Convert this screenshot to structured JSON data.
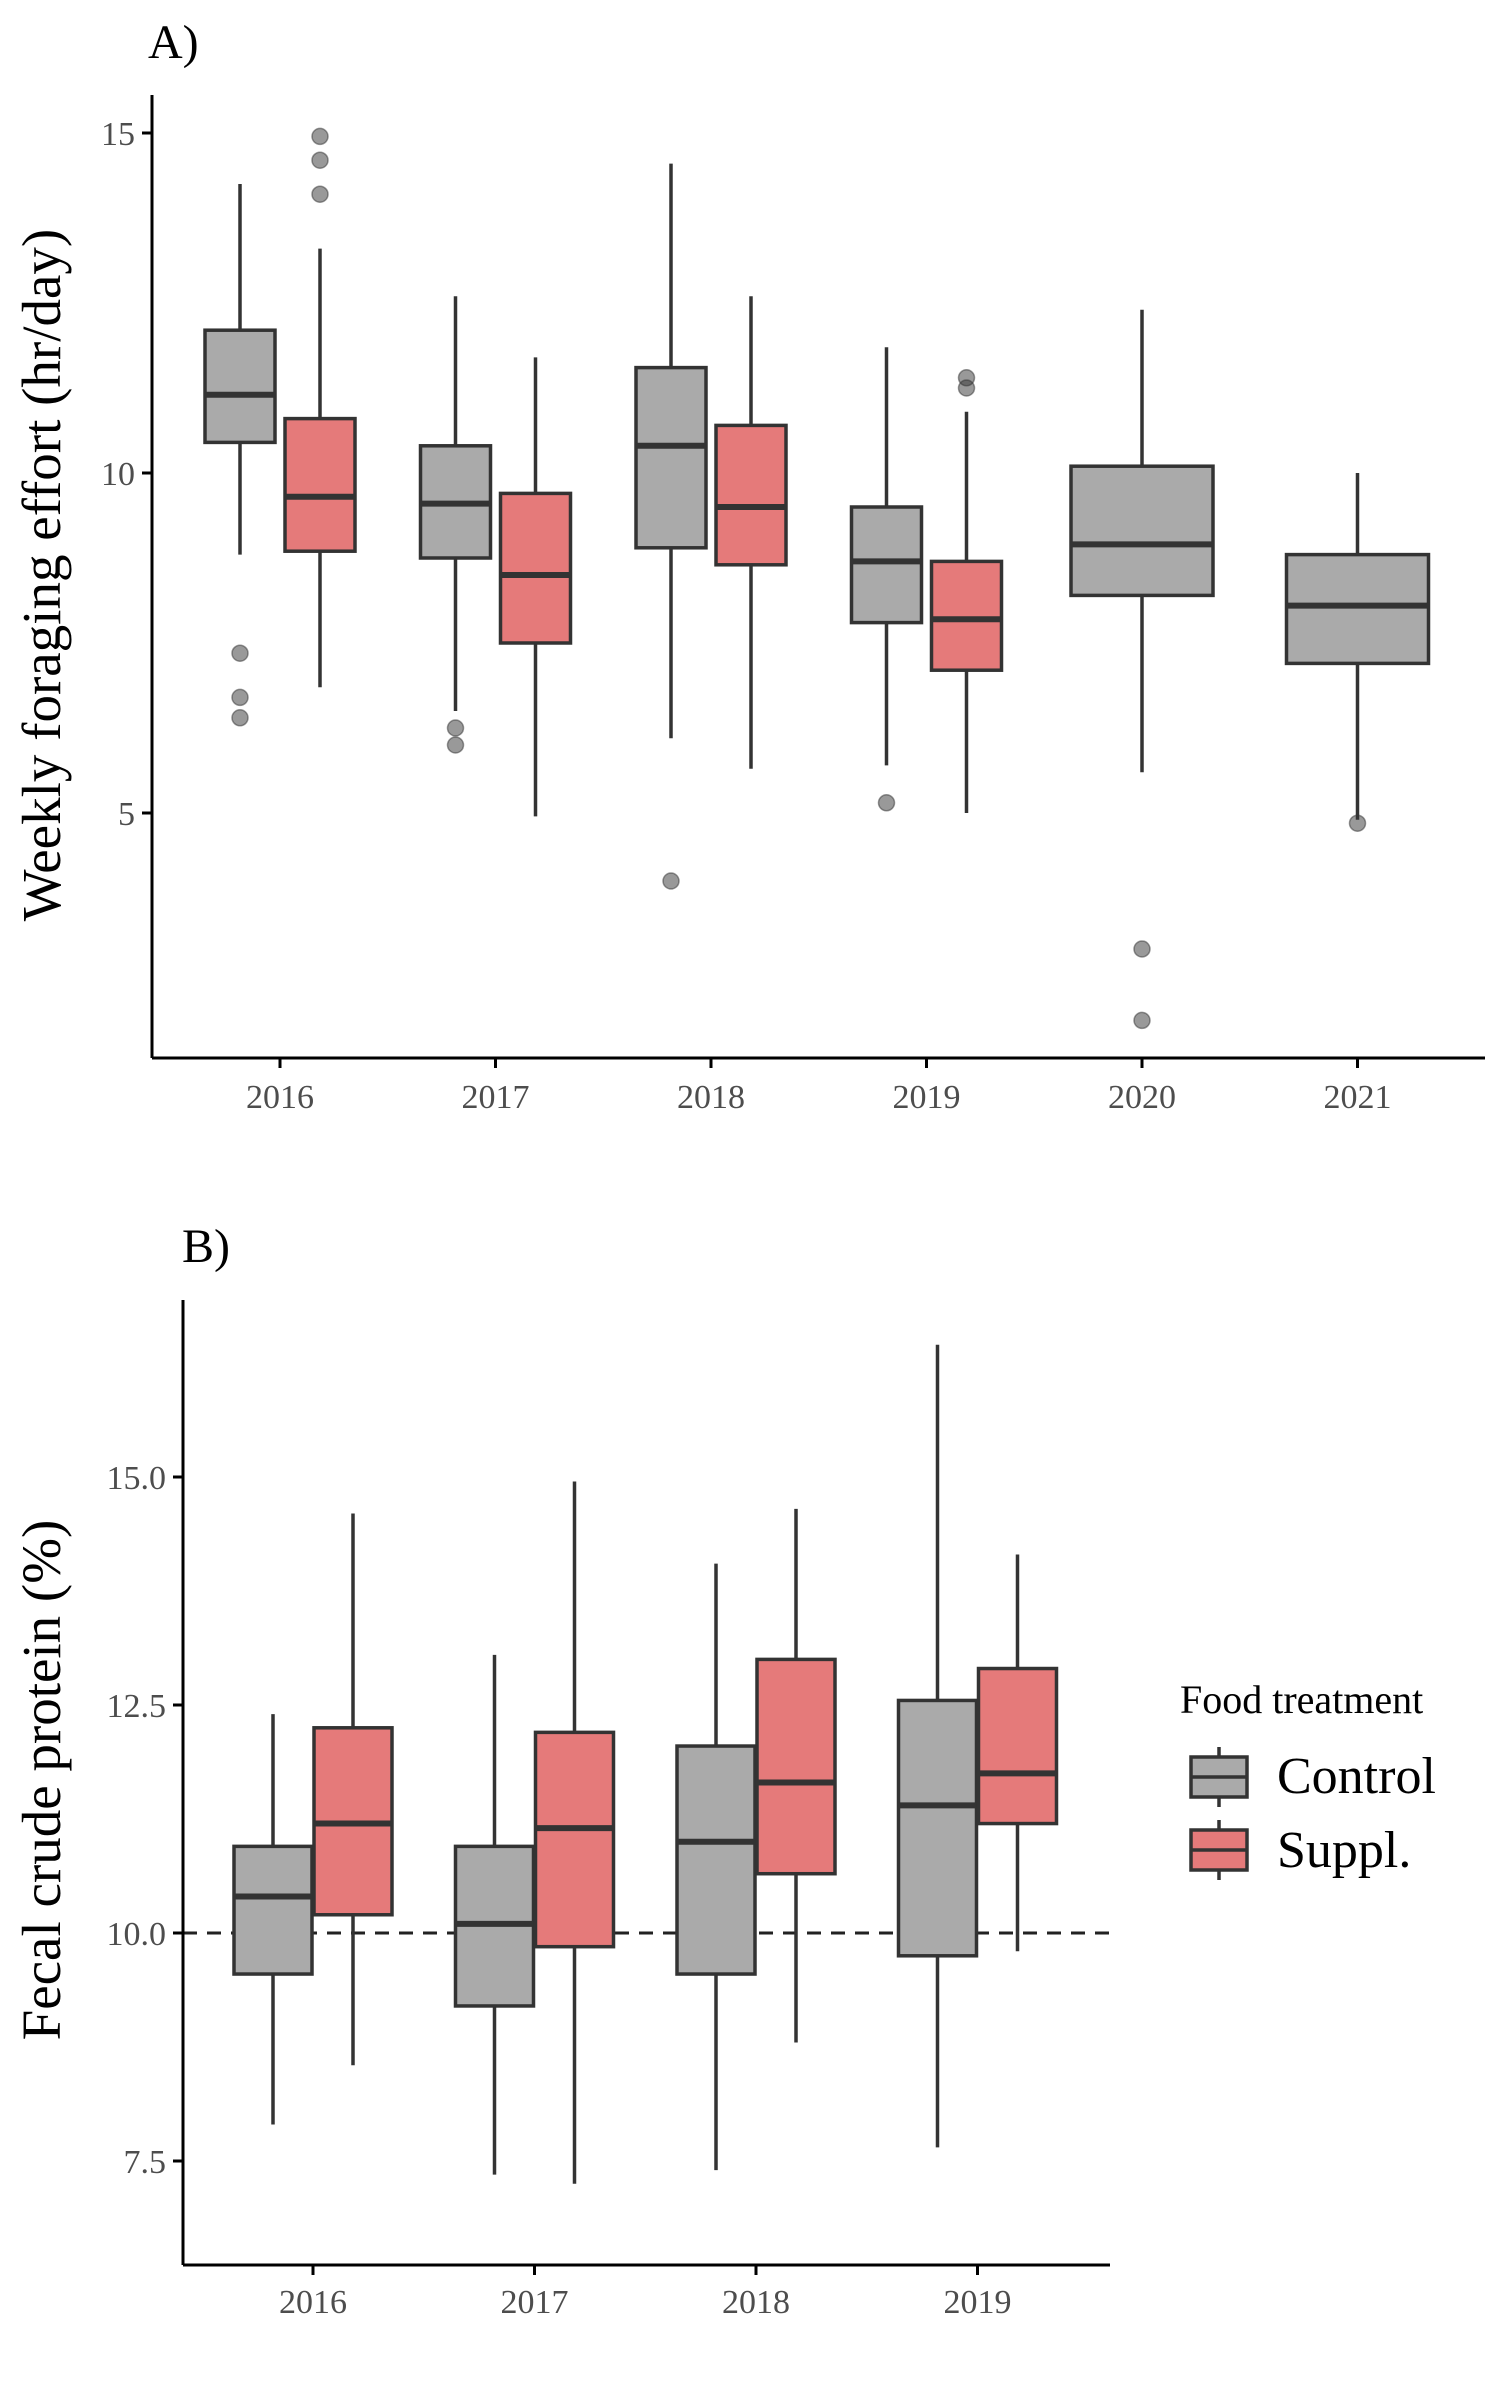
{
  "chart_data": [
    {
      "type": "boxplot",
      "panel_label": "A)",
      "title": "",
      "ylabel": "Weekly foraging effort (hr/day)",
      "xlabel": "",
      "ylim": [
        1.4,
        15.5
      ],
      "yticks": [
        5,
        10,
        15
      ],
      "ytick_labels": [
        "5",
        "10",
        "15"
      ],
      "categories": [
        "2016",
        "2017",
        "2018",
        "2019",
        "2020",
        "2021"
      ],
      "series": [
        {
          "name": "Control",
          "color": "#aaaaaa",
          "boxes": [
            {
              "category": "2016",
              "whisker_low": 8.8,
              "q1": 10.45,
              "median": 11.15,
              "q3": 12.1,
              "whisker_high": 14.25,
              "outliers": [
                7.35,
                6.7,
                6.4
              ]
            },
            {
              "category": "2017",
              "whisker_low": 6.5,
              "q1": 8.75,
              "median": 9.55,
              "q3": 10.4,
              "whisker_high": 12.6,
              "outliers": [
                6.25,
                6.0
              ]
            },
            {
              "category": "2018",
              "whisker_low": 6.1,
              "q1": 8.9,
              "median": 10.4,
              "q3": 11.55,
              "whisker_high": 14.55,
              "outliers": [
                4.0
              ]
            },
            {
              "category": "2019",
              "whisker_low": 5.7,
              "q1": 7.8,
              "median": 8.7,
              "q3": 9.5,
              "whisker_high": 11.85,
              "outliers": [
                5.15
              ]
            },
            {
              "category": "2020",
              "whisker_low": 5.6,
              "q1": 8.2,
              "median": 8.95,
              "q3": 10.1,
              "whisker_high": 12.4,
              "outliers": [
                3.0,
                1.95
              ]
            },
            {
              "category": "2021",
              "whisker_low": 4.9,
              "q1": 7.2,
              "median": 8.05,
              "q3": 8.8,
              "whisker_high": 10.0,
              "outliers": [
                4.85
              ]
            }
          ]
        },
        {
          "name": "Suppl.",
          "color": "#e57a7a",
          "boxes": [
            {
              "category": "2016",
              "whisker_low": 6.85,
              "q1": 8.85,
              "median": 9.65,
              "q3": 10.8,
              "whisker_high": 13.3,
              "outliers": [
                14.1,
                14.6,
                14.95
              ]
            },
            {
              "category": "2017",
              "whisker_low": 4.95,
              "q1": 7.5,
              "median": 8.5,
              "q3": 9.7,
              "whisker_high": 11.7,
              "outliers": []
            },
            {
              "category": "2018",
              "whisker_low": 5.65,
              "q1": 8.65,
              "median": 9.5,
              "q3": 10.7,
              "whisker_high": 12.6,
              "outliers": []
            },
            {
              "category": "2019",
              "whisker_low": 5.0,
              "q1": 7.1,
              "median": 7.85,
              "q3": 8.7,
              "whisker_high": 10.9,
              "outliers": [
                11.25,
                11.4
              ]
            }
          ]
        }
      ]
    },
    {
      "type": "boxplot",
      "panel_label": "B)",
      "title": "",
      "ylabel": "Fecal crude protein (%)",
      "xlabel": "",
      "ylim": [
        6.9,
        17.0
      ],
      "yticks": [
        7.5,
        10.0,
        12.5,
        15.0
      ],
      "ytick_labels": [
        "7.5",
        "10.0",
        "12.5",
        "15.0"
      ],
      "reference_line": {
        "y": 10.0,
        "style": "dashed"
      },
      "categories": [
        "2016",
        "2017",
        "2018",
        "2019"
      ],
      "series": [
        {
          "name": "Control",
          "color": "#aaaaaa",
          "boxes": [
            {
              "category": "2016",
              "whisker_low": 7.9,
              "q1": 9.55,
              "median": 10.4,
              "q3": 10.95,
              "whisker_high": 12.4,
              "outliers": []
            },
            {
              "category": "2017",
              "whisker_low": 7.35,
              "q1": 9.2,
              "median": 10.1,
              "q3": 10.95,
              "whisker_high": 13.05,
              "outliers": []
            },
            {
              "category": "2018",
              "whisker_low": 7.4,
              "q1": 9.55,
              "median": 11.0,
              "q3": 12.05,
              "whisker_high": 14.05,
              "outliers": []
            },
            {
              "category": "2019",
              "whisker_low": 7.65,
              "q1": 9.75,
              "median": 11.4,
              "q3": 12.55,
              "whisker_high": 16.45,
              "outliers": []
            }
          ]
        },
        {
          "name": "Suppl.",
          "color": "#e57a7a",
          "boxes": [
            {
              "category": "2016",
              "whisker_low": 8.55,
              "q1": 10.2,
              "median": 11.2,
              "q3": 12.25,
              "whisker_high": 14.6,
              "outliers": []
            },
            {
              "category": "2017",
              "whisker_low": 7.25,
              "q1": 9.85,
              "median": 11.15,
              "q3": 12.2,
              "whisker_high": 14.95,
              "outliers": []
            },
            {
              "category": "2018",
              "whisker_low": 8.8,
              "q1": 10.65,
              "median": 11.65,
              "q3": 13.0,
              "whisker_high": 14.65,
              "outliers": []
            },
            {
              "category": "2019",
              "whisker_low": 9.8,
              "q1": 11.2,
              "median": 11.75,
              "q3": 12.9,
              "whisker_high": 14.15,
              "outliers": []
            }
          ]
        }
      ]
    }
  ],
  "legend": {
    "title": "Food treatment",
    "placement": "right of panel B",
    "items": [
      {
        "label": "Control",
        "color": "#aaaaaa"
      },
      {
        "label": "Suppl.",
        "color": "#e57a7a"
      }
    ]
  }
}
